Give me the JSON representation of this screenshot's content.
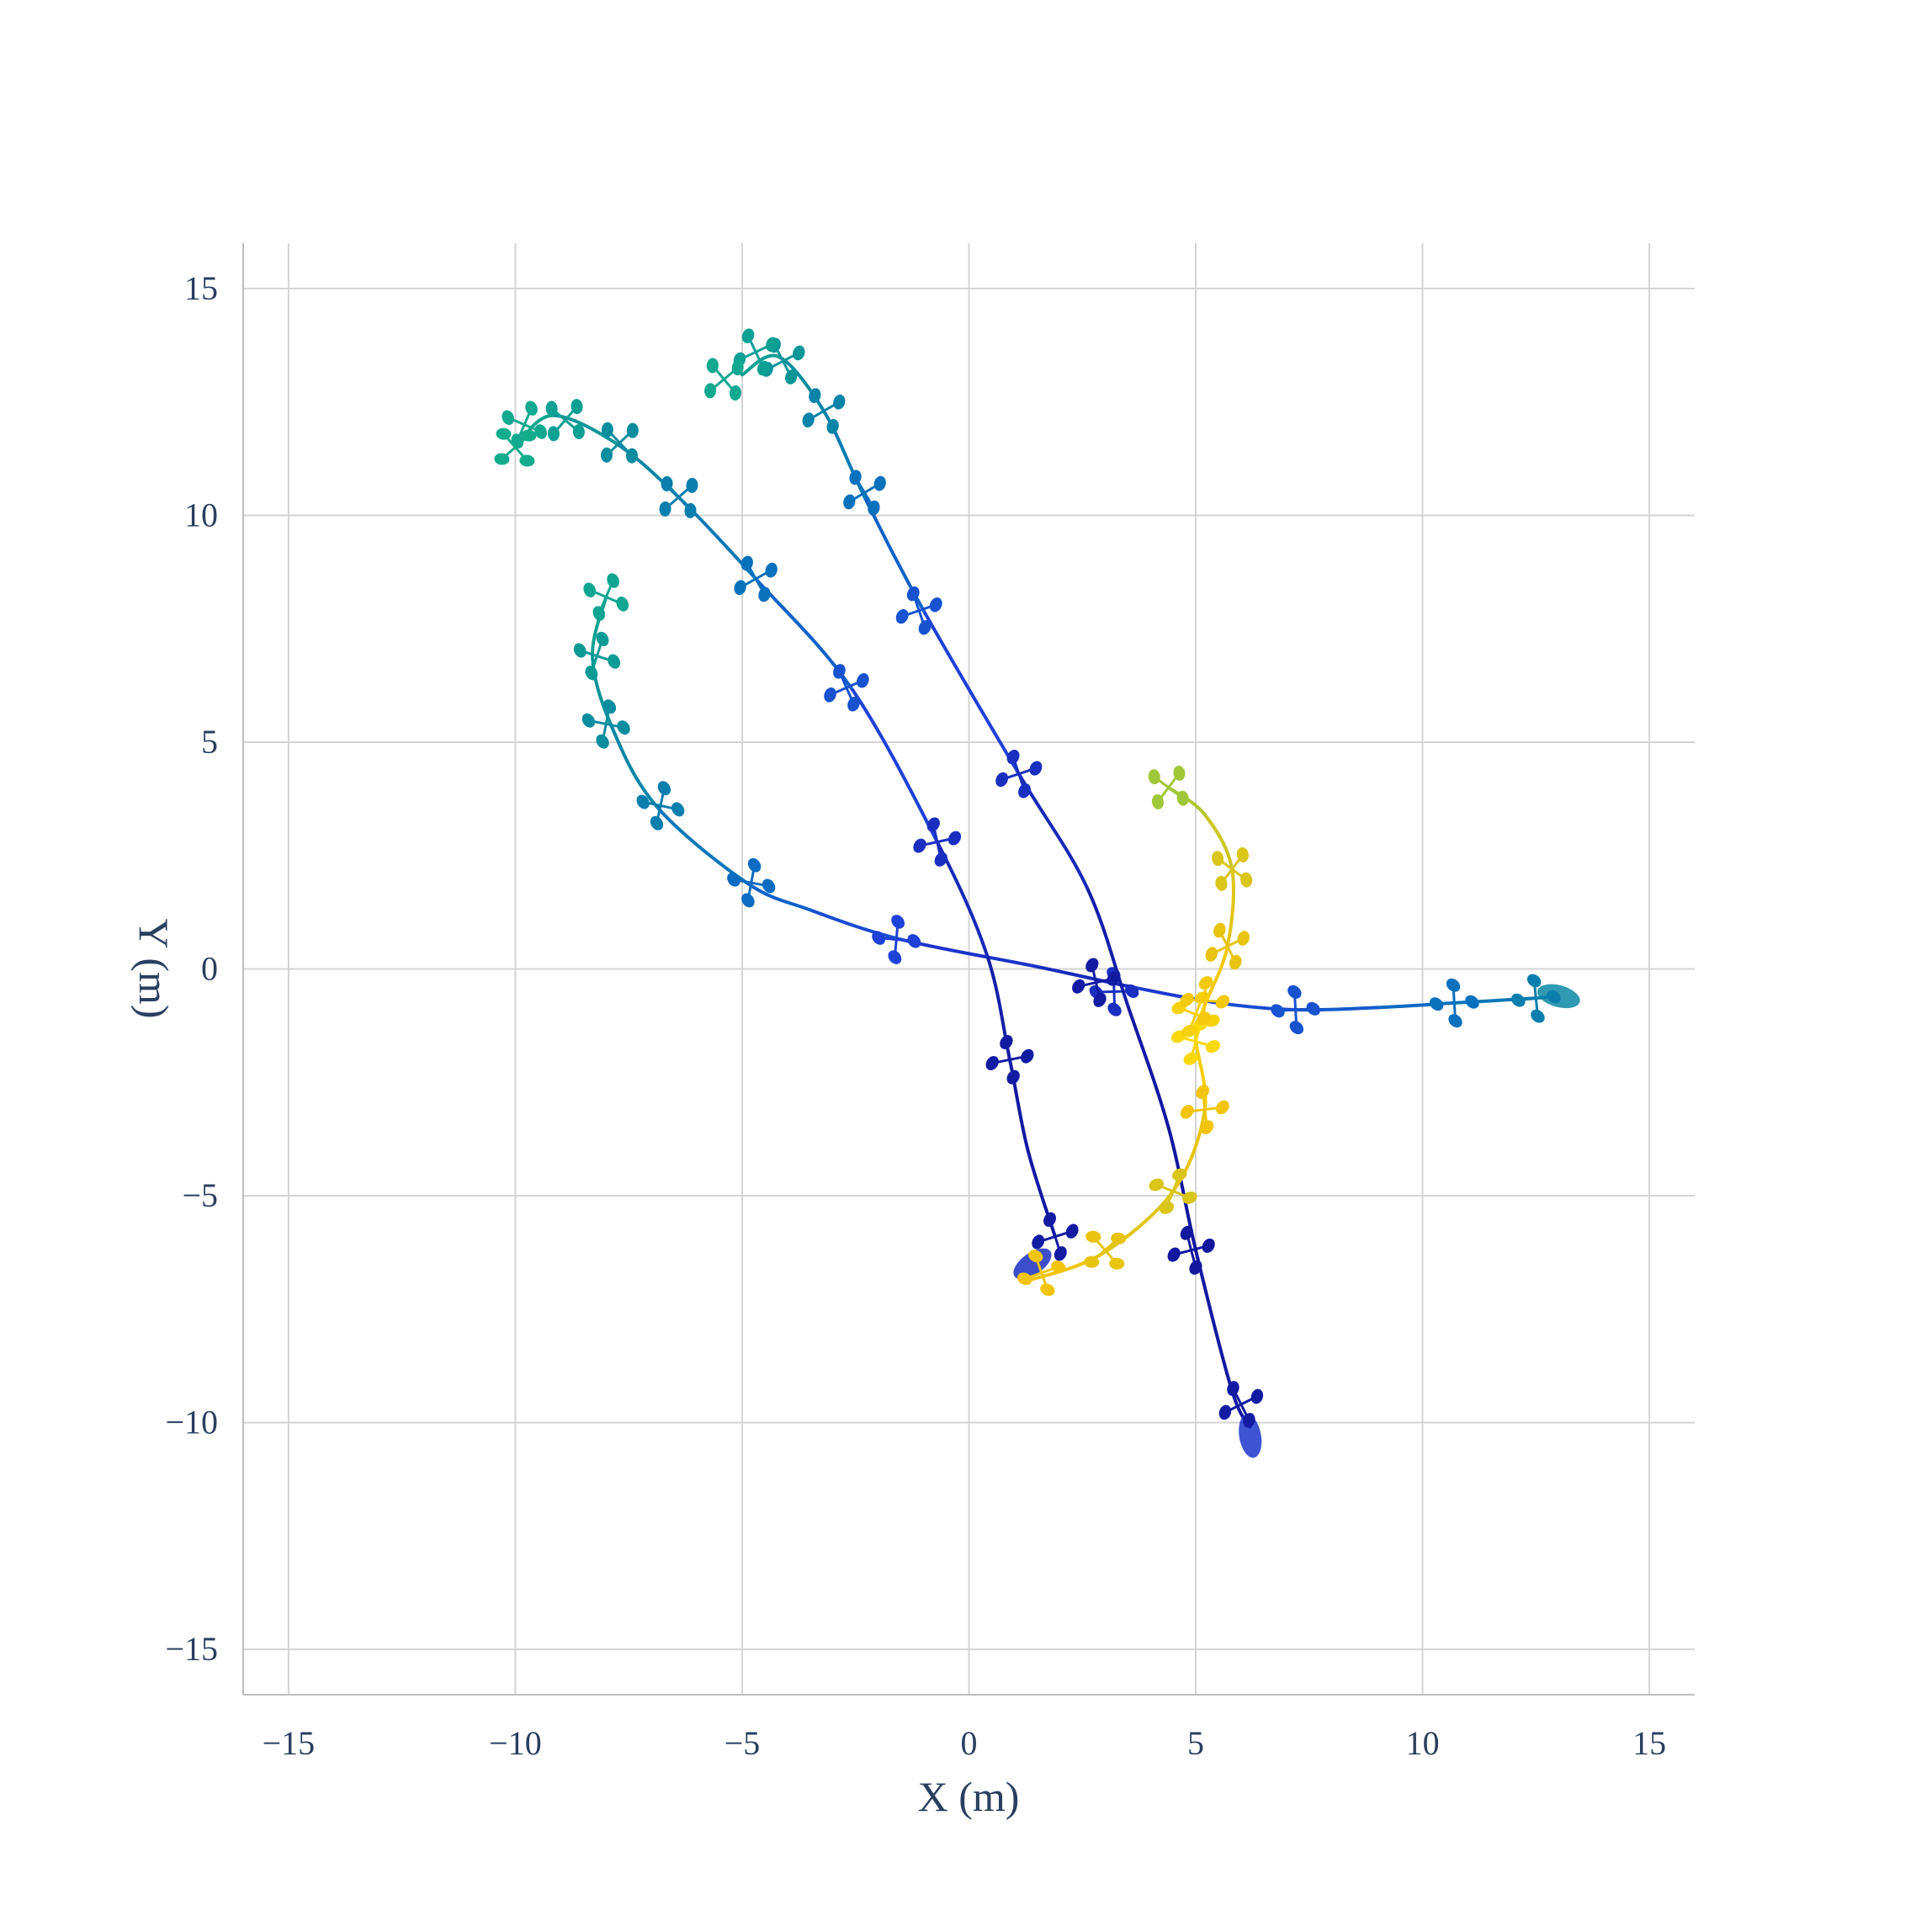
{
  "chart_data": {
    "type": "line",
    "title": "",
    "xlabel": "X (m)",
    "ylabel": "Y (m)",
    "xlim": [
      -16,
      16
    ],
    "ylim": [
      -16,
      16
    ],
    "x_ticks": [
      -15,
      -10,
      -5,
      0,
      5,
      10,
      15
    ],
    "y_ticks": [
      -15,
      -10,
      -5,
      0,
      5,
      10,
      15
    ],
    "x_tick_labels": [
      "−15",
      "−10",
      "−5",
      "0",
      "5",
      "10",
      "15"
    ],
    "y_tick_labels": [
      "−15",
      "−10",
      "−5",
      "0",
      "5",
      "10",
      "15"
    ],
    "grid": true,
    "legend": "none",
    "colorscale": [
      "#0d0887",
      "#1f3fd8",
      "#0a6ec1",
      "#0a8f9c",
      "#14b08c",
      "#26cc7a",
      "#f2c40c",
      "#fce205"
    ],
    "series": [
      {
        "points": [
          {
            "x": 12.9,
            "y": -0.6,
            "c": 0.38
          },
          {
            "x": 12.4,
            "y": -0.65,
            "c": 0.36
          },
          {
            "x": 10.7,
            "y": -0.75,
            "c": 0.3
          },
          {
            "x": 9.0,
            "y": -0.85,
            "c": 0.25
          },
          {
            "x": 7.2,
            "y": -0.9,
            "c": 0.2
          },
          {
            "x": 5.5,
            "y": -0.75,
            "c": 0.15
          },
          {
            "x": 3.6,
            "y": -0.4,
            "c": 0.1
          },
          {
            "x": 1.5,
            "y": 0.05,
            "c": 0.08
          },
          {
            "x": -1.5,
            "y": 0.65,
            "c": 0.15
          },
          {
            "x": -3.5,
            "y": 1.3,
            "c": 0.22
          },
          {
            "x": -4.9,
            "y": 1.9,
            "c": 0.28
          },
          {
            "x": -6.9,
            "y": 3.6,
            "c": 0.36
          },
          {
            "x": -7.9,
            "y": 5.4,
            "c": 0.42
          },
          {
            "x": -8.3,
            "y": 6.9,
            "c": 0.48
          },
          {
            "x": -8.0,
            "y": 8.2,
            "c": 0.53
          }
        ],
        "drones": [
          {
            "x": 12.5,
            "y": -0.65,
            "c": 0.36
          },
          {
            "x": 10.7,
            "y": -0.75,
            "c": 0.3
          },
          {
            "x": 7.2,
            "y": -0.9,
            "c": 0.2
          },
          {
            "x": 3.2,
            "y": -0.5,
            "c": 0.1
          },
          {
            "x": -1.6,
            "y": 0.65,
            "c": 0.15
          },
          {
            "x": -4.8,
            "y": 1.9,
            "c": 0.28
          },
          {
            "x": -6.8,
            "y": 3.6,
            "c": 0.36
          },
          {
            "x": -8.0,
            "y": 5.4,
            "c": 0.42
          },
          {
            "x": -8.2,
            "y": 6.9,
            "c": 0.48
          },
          {
            "x": -8.0,
            "y": 8.2,
            "c": 0.53
          }
        ],
        "start_marker": {
          "x": 13.0,
          "y": -0.6,
          "c": 0.4
        }
      },
      {
        "points": [
          {
            "x": 1.9,
            "y": -5.9,
            "c": 0.05
          },
          {
            "x": 1.3,
            "y": -4.0,
            "c": 0.04
          },
          {
            "x": 0.9,
            "y": -2.0,
            "c": 0.05
          },
          {
            "x": 0.4,
            "y": 0.3,
            "c": 0.07
          },
          {
            "x": -0.7,
            "y": 2.8,
            "c": 0.1
          },
          {
            "x": -2.6,
            "y": 6.2,
            "c": 0.2
          },
          {
            "x": -4.7,
            "y": 8.6,
            "c": 0.3
          },
          {
            "x": -6.4,
            "y": 10.4,
            "c": 0.36
          },
          {
            "x": -7.8,
            "y": 11.6,
            "c": 0.42
          },
          {
            "x": -9.2,
            "y": 12.2,
            "c": 0.5
          },
          {
            "x": -10.0,
            "y": 11.5,
            "c": 0.56
          }
        ],
        "drones": [
          {
            "x": 1.9,
            "y": -5.9,
            "c": 0.05
          },
          {
            "x": 0.9,
            "y": -2.0,
            "c": 0.05
          },
          {
            "x": -0.7,
            "y": 2.8,
            "c": 0.1
          },
          {
            "x": -2.7,
            "y": 6.2,
            "c": 0.2
          },
          {
            "x": -4.7,
            "y": 8.6,
            "c": 0.3
          },
          {
            "x": -6.4,
            "y": 10.4,
            "c": 0.36
          },
          {
            "x": -7.7,
            "y": 11.6,
            "c": 0.42
          },
          {
            "x": -8.9,
            "y": 12.1,
            "c": 0.5
          },
          {
            "x": -9.8,
            "y": 12.0,
            "c": 0.54
          },
          {
            "x": -10.0,
            "y": 11.5,
            "c": 0.56
          }
        ],
        "start_marker": {
          "x": 1.4,
          "y": -6.5,
          "c": 0.1
        }
      },
      {
        "points": [
          {
            "x": 6.2,
            "y": -10.1,
            "c": 0.05
          },
          {
            "x": 5.8,
            "y": -9.3,
            "c": 0.05
          },
          {
            "x": 5.0,
            "y": -6.2,
            "c": 0.04
          },
          {
            "x": 4.4,
            "y": -3.5,
            "c": 0.04
          },
          {
            "x": 3.5,
            "y": -0.8,
            "c": 0.05
          },
          {
            "x": 2.6,
            "y": 1.8,
            "c": 0.07
          },
          {
            "x": 1.1,
            "y": 4.3,
            "c": 0.1
          },
          {
            "x": -1.0,
            "y": 7.9,
            "c": 0.2
          },
          {
            "x": -2.3,
            "y": 10.4,
            "c": 0.3
          },
          {
            "x": -3.2,
            "y": 12.3,
            "c": 0.38
          },
          {
            "x": -4.2,
            "y": 13.5,
            "c": 0.46
          },
          {
            "x": -5.0,
            "y": 13.1,
            "c": 0.54
          }
        ],
        "drones": [
          {
            "x": 6.0,
            "y": -9.6,
            "c": 0.05
          },
          {
            "x": 4.9,
            "y": -6.2,
            "c": 0.04
          },
          {
            "x": 2.8,
            "y": -0.3,
            "c": 0.05
          },
          {
            "x": 1.1,
            "y": 4.3,
            "c": 0.1
          },
          {
            "x": -1.1,
            "y": 7.9,
            "c": 0.2
          },
          {
            "x": -2.3,
            "y": 10.5,
            "c": 0.3
          },
          {
            "x": -3.2,
            "y": 12.3,
            "c": 0.38
          },
          {
            "x": -4.1,
            "y": 13.4,
            "c": 0.46
          },
          {
            "x": -4.7,
            "y": 13.6,
            "c": 0.5
          },
          {
            "x": -5.4,
            "y": 13.0,
            "c": 0.54
          }
        ],
        "start_marker": {
          "x": 6.2,
          "y": -10.3,
          "c": 0.12
        }
      },
      {
        "points": [
          {
            "x": 1.2,
            "y": -6.9,
            "c": 0.86
          },
          {
            "x": 2.9,
            "y": -6.3,
            "c": 0.85
          },
          {
            "x": 4.5,
            "y": -4.9,
            "c": 0.84
          },
          {
            "x": 5.2,
            "y": -3.1,
            "c": 0.86
          },
          {
            "x": 5.0,
            "y": -1.5,
            "c": 0.95
          },
          {
            "x": 5.2,
            "y": -0.8,
            "c": 0.9
          },
          {
            "x": 5.7,
            "y": 0.5,
            "c": 0.85
          },
          {
            "x": 5.8,
            "y": 2.2,
            "c": 0.84
          },
          {
            "x": 5.2,
            "y": 3.4,
            "c": 0.82
          },
          {
            "x": 4.4,
            "y": 4.0,
            "c": 0.8
          }
        ],
        "drones": [
          {
            "x": 1.6,
            "y": -6.7,
            "c": 0.86
          },
          {
            "x": 3.0,
            "y": -6.2,
            "c": 0.85
          },
          {
            "x": 4.5,
            "y": -4.9,
            "c": 0.84
          },
          {
            "x": 5.2,
            "y": -3.1,
            "c": 0.86
          },
          {
            "x": 5.0,
            "y": -1.6,
            "c": 0.95
          },
          {
            "x": 5.0,
            "y": -1.0,
            "c": 0.92
          },
          {
            "x": 5.2,
            "y": -0.7,
            "c": 0.88
          },
          {
            "x": 5.7,
            "y": 0.5,
            "c": 0.85
          },
          {
            "x": 5.8,
            "y": 2.2,
            "c": 0.84
          },
          {
            "x": 4.4,
            "y": 4.0,
            "c": 0.8
          }
        ],
        "start_marker": null
      }
    ]
  }
}
